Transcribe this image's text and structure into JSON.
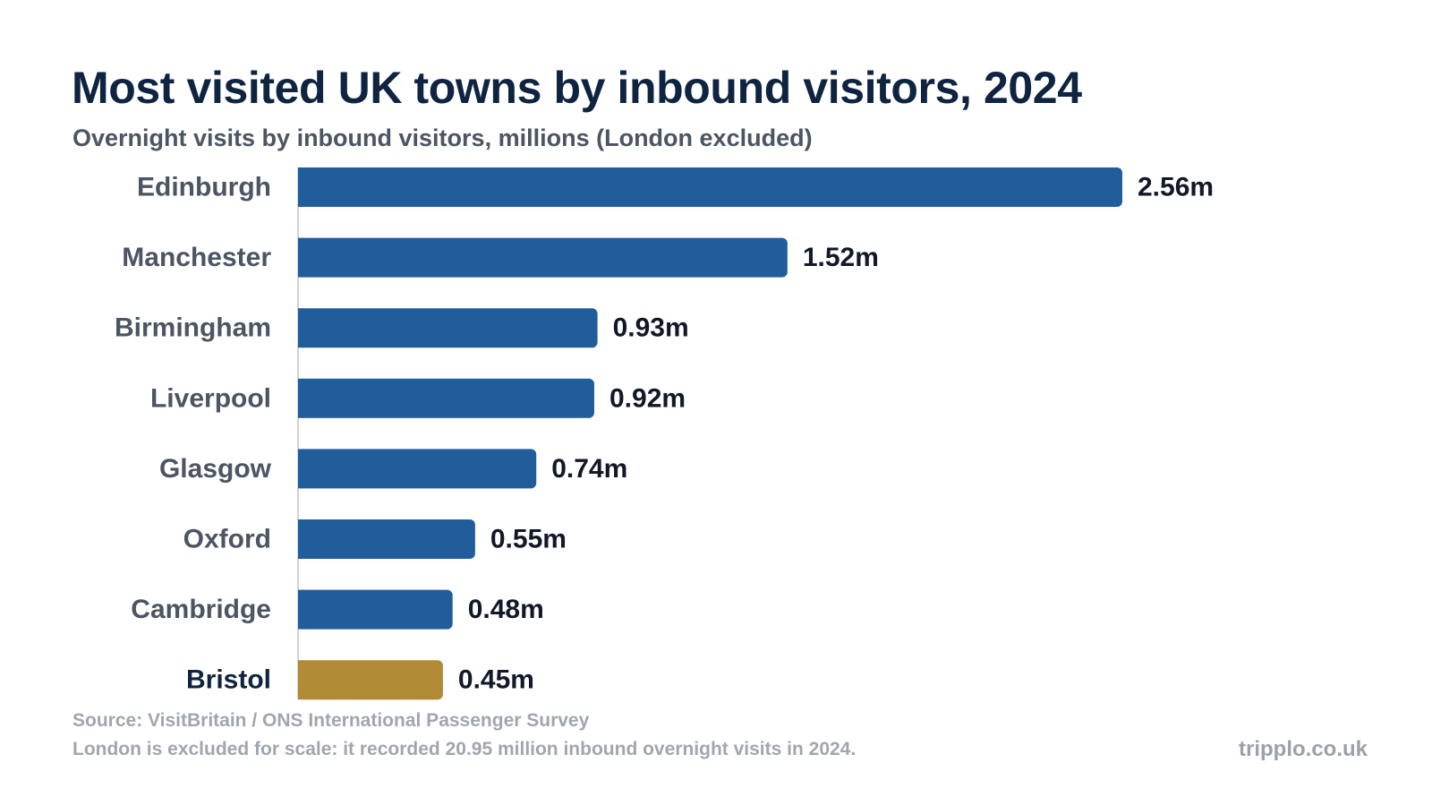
{
  "chart_data": {
    "type": "bar",
    "orientation": "horizontal",
    "title": "Most visited UK towns by inbound visitors, 2024",
    "subtitle": "Overnight visits by inbound visitors, millions (London excluded)",
    "categories": [
      "Edinburgh",
      "Manchester",
      "Birmingham",
      "Liverpool",
      "Glasgow",
      "Oxford",
      "Cambridge",
      "Bristol"
    ],
    "values": [
      2.56,
      1.52,
      0.93,
      0.92,
      0.74,
      0.55,
      0.48,
      0.45
    ],
    "value_labels": [
      "2.56m",
      "1.52m",
      "0.93m",
      "0.92m",
      "0.74m",
      "0.55m",
      "0.48m",
      "0.45m"
    ],
    "highlight": "Bristol",
    "colors": {
      "bar": "#215d9b",
      "highlight": "#b08a34",
      "label": "#4b5563",
      "highlight_label": "#0f2440",
      "value_label": "#111827",
      "baseline": "#cfd4da"
    },
    "xlim": [
      0,
      2.56
    ],
    "grid": false,
    "legend": "none"
  },
  "footer": {
    "source": "Source: VisitBritain / ONS International Passenger Survey",
    "note": "London is excluded for scale: it recorded 20.95 million inbound overnight visits in 2024.",
    "site": "tripplo.co.uk"
  }
}
